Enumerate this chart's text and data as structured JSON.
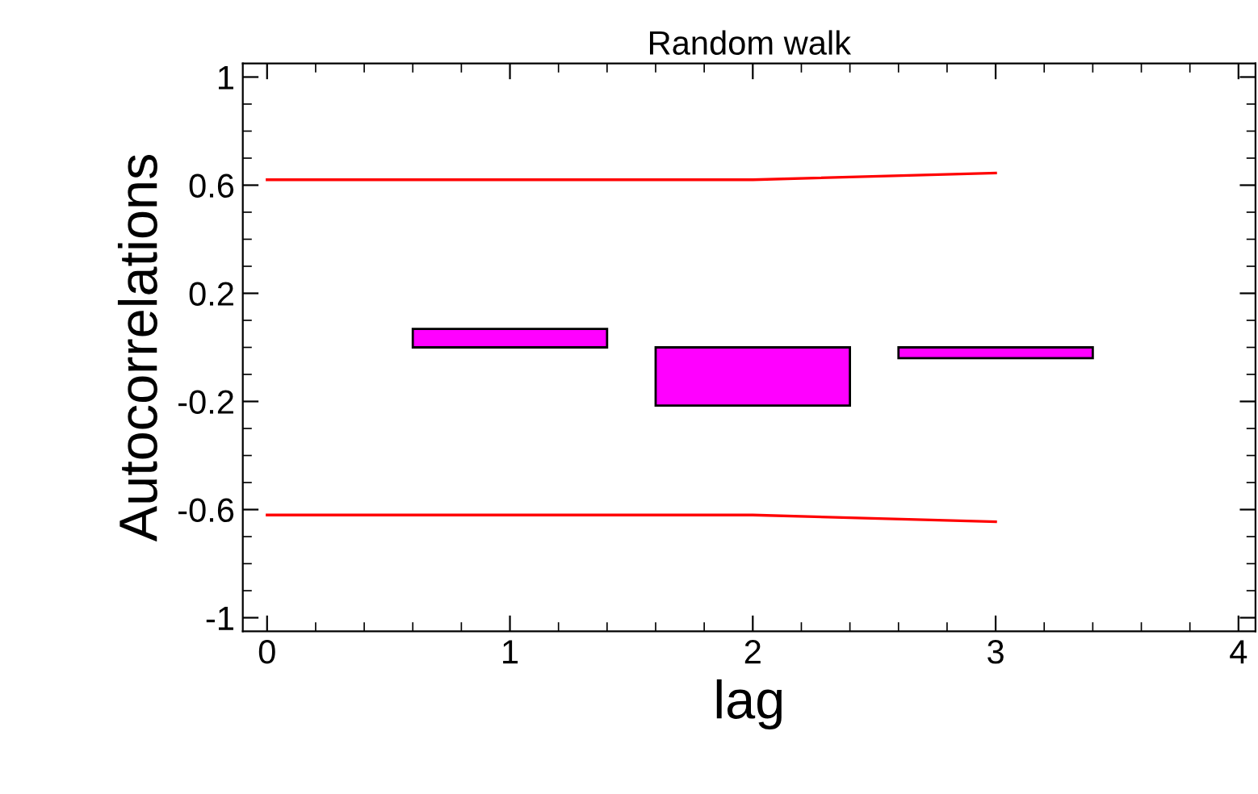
{
  "chart_data": {
    "type": "bar",
    "title": "Random walk",
    "xlabel": "lag",
    "ylabel": "Autocorrelations",
    "x": [
      1,
      2,
      3
    ],
    "series": [
      {
        "color": "#ff00ff",
        "values": [
          0.068,
          -0.215,
          -0.04
        ]
      },
      {
        "type": "line",
        "color": "#ff0000",
        "x": [
          0,
          1,
          2,
          3
        ],
        "values": [
          0.62,
          0.62,
          0.62,
          0.645
        ]
      },
      {
        "type": "line",
        "color": "#ff0000",
        "x": [
          0,
          1,
          2,
          3
        ],
        "values": [
          -0.62,
          -0.62,
          -0.62,
          -0.645
        ]
      }
    ],
    "xlim": [
      -0.1,
      4.07
    ],
    "xticks": [
      0,
      1,
      2,
      3,
      4
    ],
    "ylim": [
      -1.05,
      1.05
    ],
    "yticks": [
      -1,
      -0.6,
      -0.2,
      0.2,
      0.6,
      1
    ],
    "grid": false,
    "legend": false
  }
}
